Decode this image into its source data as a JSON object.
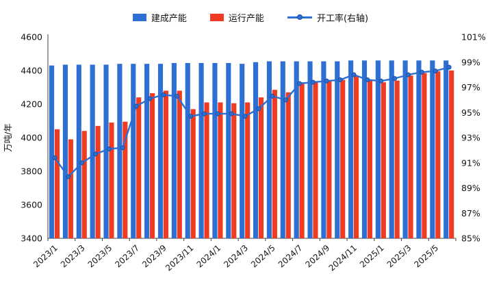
{
  "legend": {
    "built": "建成产能",
    "running": "运行产能",
    "rate": "开工率(右轴)"
  },
  "axes": {
    "ylabel": "万吨/年",
    "left_ticks": [
      "4600",
      "4400",
      "4200",
      "4000",
      "3800",
      "3600",
      "3400"
    ],
    "right_ticks": [
      "101%",
      "99%",
      "97%",
      "95%",
      "93%",
      "91%",
      "89%",
      "87%",
      "85%"
    ]
  },
  "chart_data": {
    "type": "combo",
    "bar_type": "bar",
    "line_type": "line",
    "title": "",
    "xlabel": "",
    "ylabel": "万吨/年",
    "ylim": [
      3400,
      4600
    ],
    "y_step": 200,
    "y2lim": [
      85,
      101
    ],
    "y2_step": 2,
    "grid": false,
    "legend_position": "top",
    "categories": [
      "2023/1",
      "2023/2",
      "2023/3",
      "2023/4",
      "2023/5",
      "2023/6",
      "2023/7",
      "2023/8",
      "2023/9",
      "2023/10",
      "2023/11",
      "2023/12",
      "2024/1",
      "2024/2",
      "2024/3",
      "2024/4",
      "2024/5",
      "2024/6",
      "2024/7",
      "2024/8",
      "2024/9",
      "2024/10",
      "2024/11",
      "2024/12",
      "2025/1",
      "2025/2",
      "2025/3",
      "2025/4",
      "2025/5",
      "2025/6"
    ],
    "x_tick_labels": [
      "2023/1",
      "2023/3",
      "2023/5",
      "2023/7",
      "2023/9",
      "2023/11",
      "2024/1",
      "2024/3",
      "2024/5",
      "2024/7",
      "2024/9",
      "2024/11",
      "2025/1",
      "2025/3",
      "2025/5"
    ],
    "series": [
      {
        "name": "建成产能",
        "type": "bar",
        "axis": "left",
        "color": "#2d6fd3",
        "values": [
          4430,
          4435,
          4435,
          4435,
          4435,
          4440,
          4440,
          4440,
          4440,
          4445,
          4445,
          4445,
          4445,
          4445,
          4440,
          4450,
          4455,
          4455,
          4455,
          4455,
          4455,
          4455,
          4460,
          4460,
          4460,
          4460,
          4460,
          4460,
          4460,
          4460
        ]
      },
      {
        "name": "运行产能",
        "type": "bar",
        "axis": "left",
        "color": "#ee3b22",
        "values": [
          4050,
          3990,
          4040,
          4070,
          4090,
          4095,
          4240,
          4265,
          4280,
          4280,
          4170,
          4210,
          4210,
          4205,
          4210,
          4240,
          4285,
          4270,
          4330,
          4330,
          4335,
          4345,
          4370,
          4340,
          4330,
          4340,
          4370,
          4385,
          4395,
          4400
        ]
      },
      {
        "name": "开工率(右轴)",
        "type": "line",
        "axis": "right",
        "color": "#2d6fd3",
        "marker_edge": "#1c4e9e",
        "values": [
          91.4,
          89.9,
          91.0,
          91.7,
          92.1,
          92.2,
          95.5,
          96.1,
          96.4,
          96.3,
          94.7,
          94.9,
          94.9,
          94.9,
          94.7,
          95.3,
          96.3,
          96.0,
          97.3,
          97.4,
          97.5,
          97.6,
          98.0,
          97.6,
          97.5,
          97.7,
          98.0,
          98.2,
          98.3,
          98.6
        ]
      }
    ]
  }
}
